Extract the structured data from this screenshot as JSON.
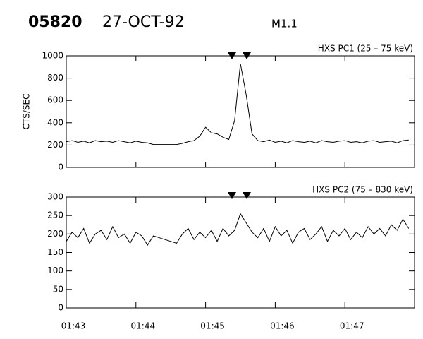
{
  "header": {
    "id": "05820",
    "date": "27-OCT-92",
    "class": "M1.1"
  },
  "chart_data": [
    {
      "type": "line",
      "title": "HXS PC1 (25 – 75 keV)",
      "ylabel": "CTS/SEC",
      "color": "#000000",
      "xlim": [
        6180,
        6480
      ],
      "ylim": [
        0,
        1000
      ],
      "yticks": [
        0,
        200,
        400,
        600,
        800,
        1000
      ],
      "x": [
        6180,
        6185,
        6190,
        6195,
        6200,
        6205,
        6210,
        6215,
        6220,
        6225,
        6230,
        6235,
        6240,
        6245,
        6250,
        6255,
        6260,
        6265,
        6270,
        6275,
        6280,
        6285,
        6290,
        6295,
        6300,
        6305,
        6310,
        6315,
        6320,
        6325,
        6330,
        6335,
        6340,
        6345,
        6350,
        6355,
        6360,
        6365,
        6370,
        6375,
        6380,
        6385,
        6390,
        6395,
        6400,
        6405,
        6410,
        6415,
        6420,
        6425,
        6430,
        6435,
        6440,
        6445,
        6450,
        6455,
        6460,
        6465,
        6470,
        6475
      ],
      "values": [
        230,
        240,
        225,
        235,
        220,
        240,
        230,
        235,
        225,
        240,
        230,
        220,
        235,
        225,
        220,
        205,
        205,
        205,
        205,
        205,
        215,
        230,
        240,
        280,
        360,
        310,
        300,
        270,
        250,
        420,
        930,
        650,
        300,
        240,
        230,
        245,
        225,
        235,
        220,
        240,
        230,
        225,
        235,
        220,
        240,
        230,
        225,
        235,
        240,
        225,
        230,
        220,
        235,
        240,
        225,
        230,
        235,
        220,
        240,
        245
      ]
    },
    {
      "type": "line",
      "title": "HXS PC2 (75 – 830 keV)",
      "color": "#000000",
      "xlim": [
        6180,
        6480
      ],
      "ylim": [
        0,
        300
      ],
      "yticks": [
        0,
        50,
        100,
        150,
        200,
        250,
        300
      ],
      "xticks": [
        {
          "value": 6180,
          "label": "01:43"
        },
        {
          "value": 6240,
          "label": "01:44"
        },
        {
          "value": 6300,
          "label": "01:45"
        },
        {
          "value": 6360,
          "label": "01:46"
        },
        {
          "value": 6420,
          "label": "01:47"
        }
      ],
      "x": [
        6180,
        6185,
        6190,
        6195,
        6200,
        6205,
        6210,
        6215,
        6220,
        6225,
        6230,
        6235,
        6240,
        6245,
        6250,
        6255,
        6260,
        6265,
        6270,
        6275,
        6280,
        6285,
        6290,
        6295,
        6300,
        6305,
        6310,
        6315,
        6320,
        6325,
        6330,
        6335,
        6340,
        6345,
        6350,
        6355,
        6360,
        6365,
        6370,
        6375,
        6380,
        6385,
        6390,
        6395,
        6400,
        6405,
        6410,
        6415,
        6420,
        6425,
        6430,
        6435,
        6440,
        6445,
        6450,
        6455,
        6460,
        6465,
        6470,
        6475
      ],
      "values": [
        180,
        205,
        190,
        215,
        175,
        200,
        210,
        185,
        220,
        190,
        200,
        175,
        205,
        195,
        170,
        195,
        190,
        185,
        180,
        175,
        200,
        215,
        185,
        205,
        190,
        210,
        180,
        215,
        195,
        210,
        255,
        230,
        205,
        190,
        215,
        180,
        220,
        195,
        210,
        175,
        205,
        215,
        185,
        200,
        220,
        180,
        210,
        195,
        215,
        185,
        205,
        190,
        220,
        200,
        215,
        195,
        225,
        210,
        240,
        215
      ]
    }
  ]
}
